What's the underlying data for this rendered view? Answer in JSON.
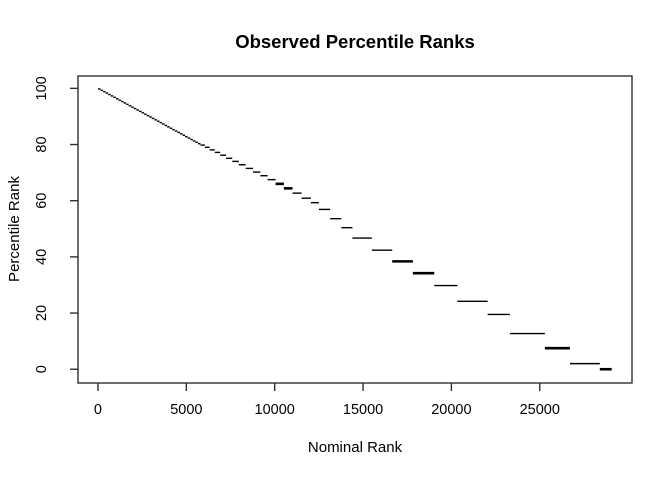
{
  "title": "Observed Percentile Ranks",
  "x_axis": {
    "label": "Nominal Rank",
    "ticks": [
      0,
      5000,
      10000,
      15000,
      20000,
      25000
    ]
  },
  "y_axis": {
    "label": "Percentile Rank",
    "ticks": [
      0,
      20,
      40,
      60,
      80,
      100
    ]
  },
  "colors": {
    "data": "#000000",
    "axis": "#2f2f2f",
    "text": "#000000",
    "background": "#ffffff"
  },
  "chart_data": {
    "type": "line",
    "subtype": "horizontal-step-segments",
    "title": "Observed Percentile Ranks",
    "xlabel": "Nominal Rank",
    "ylabel": "Percentile Rank",
    "xlim": [
      -1130,
      30220
    ],
    "ylim": [
      -4.9,
      104.4
    ],
    "x_ticks": [
      0,
      5000,
      10000,
      15000,
      20000,
      25000
    ],
    "y_ticks": [
      0,
      20,
      40,
      60,
      80,
      100
    ],
    "grid": false,
    "legend": false,
    "steps_format": [
      "x_start",
      "x_end",
      "percentile_rank",
      "thick_flag_optional"
    ],
    "steps": [
      [
        0,
        145,
        99.8
      ],
      [
        145,
        290,
        99.3
      ],
      [
        290,
        435,
        98.8
      ],
      [
        435,
        580,
        98.3
      ],
      [
        580,
        725,
        97.8
      ],
      [
        725,
        870,
        97.3
      ],
      [
        870,
        1015,
        96.8
      ],
      [
        1015,
        1160,
        96.3
      ],
      [
        1160,
        1305,
        95.8
      ],
      [
        1305,
        1450,
        95.3
      ],
      [
        1450,
        1595,
        94.8
      ],
      [
        1595,
        1740,
        94.3
      ],
      [
        1740,
        1885,
        93.8
      ],
      [
        1885,
        2030,
        93.3
      ],
      [
        2030,
        2175,
        92.8
      ],
      [
        2175,
        2320,
        92.3
      ],
      [
        2320,
        2465,
        91.8
      ],
      [
        2465,
        2610,
        91.3
      ],
      [
        2610,
        2755,
        90.8
      ],
      [
        2755,
        2900,
        90.3
      ],
      [
        2900,
        3045,
        89.8
      ],
      [
        3045,
        3190,
        89.3
      ],
      [
        3190,
        3335,
        88.8
      ],
      [
        3335,
        3480,
        88.3
      ],
      [
        3480,
        3625,
        87.8
      ],
      [
        3625,
        3770,
        87.3
      ],
      [
        3770,
        3915,
        86.8
      ],
      [
        3915,
        4060,
        86.3
      ],
      [
        4060,
        4205,
        85.8
      ],
      [
        4205,
        4350,
        85.3
      ],
      [
        4350,
        4495,
        84.8
      ],
      [
        4495,
        4640,
        84.3
      ],
      [
        4640,
        4785,
        83.8
      ],
      [
        4785,
        4930,
        83.3
      ],
      [
        4930,
        5075,
        82.8
      ],
      [
        5075,
        5220,
        82.3
      ],
      [
        5220,
        5365,
        81.8
      ],
      [
        5365,
        5510,
        81.3
      ],
      [
        5510,
        5655,
        80.8
      ],
      [
        5655,
        5800,
        80.3
      ],
      [
        5800,
        6050,
        79.8
      ],
      [
        6050,
        6320,
        79.0
      ],
      [
        6320,
        6610,
        78.1
      ],
      [
        6610,
        6920,
        77.2
      ],
      [
        6920,
        7250,
        76.2
      ],
      [
        7250,
        7600,
        75.1
      ],
      [
        7600,
        7970,
        74.0
      ],
      [
        7970,
        8360,
        72.8
      ],
      [
        8360,
        8770,
        71.5
      ],
      [
        8770,
        9190,
        70.2
      ],
      [
        9190,
        9600,
        68.9
      ],
      [
        9600,
        10050,
        67.5
      ],
      [
        10050,
        10520,
        66.0,
        1
      ],
      [
        10520,
        11010,
        64.4,
        1
      ],
      [
        11010,
        11520,
        62.7
      ],
      [
        11520,
        12050,
        60.9
      ],
      [
        12050,
        12500,
        59.3
      ],
      [
        12500,
        13140,
        56.9
      ],
      [
        13140,
        13770,
        53.6
      ],
      [
        13770,
        14400,
        50.4
      ],
      [
        14400,
        15500,
        46.7
      ],
      [
        15500,
        16650,
        42.4
      ],
      [
        16650,
        17820,
        38.4,
        1
      ],
      [
        17820,
        19030,
        34.2,
        1
      ],
      [
        19030,
        20340,
        29.8
      ],
      [
        20340,
        22050,
        24.2
      ],
      [
        22050,
        23310,
        19.5
      ],
      [
        23310,
        25290,
        12.7
      ],
      [
        25290,
        26710,
        7.5,
        1
      ],
      [
        26710,
        28400,
        2.0
      ],
      [
        28400,
        29070,
        0.0,
        1
      ]
    ]
  }
}
